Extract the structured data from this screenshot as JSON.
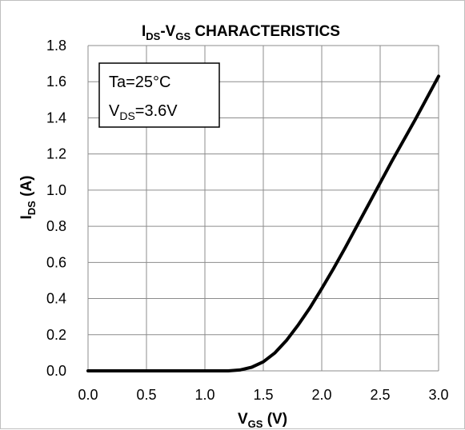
{
  "chart_data": {
    "type": "line",
    "title": {
      "main": "I",
      "sub1": "DS",
      "mid": "-V",
      "sub2": "GS",
      "rest": " CHARACTERISTICS"
    },
    "xlabel": {
      "main": "V",
      "sub": "GS",
      "rest": " (V)"
    },
    "ylabel": {
      "main": "I",
      "sub": "DS",
      "rest": " (A)"
    },
    "xlim": [
      0,
      3.0
    ],
    "ylim": [
      0,
      1.8
    ],
    "x_ticks": [
      "0.0",
      "0.5",
      "1.0",
      "1.5",
      "2.0",
      "2.5",
      "3.0"
    ],
    "y_ticks": [
      "0.0",
      "0.2",
      "0.4",
      "0.6",
      "0.8",
      "1.0",
      "1.2",
      "1.4",
      "1.6",
      "1.8"
    ],
    "grid": true,
    "legend": "none",
    "line_color": "#000000",
    "annotation": {
      "line1": "Ta=25°C",
      "line2_main": "V",
      "line2_sub": "DS",
      "line2_rest": "=3.6V"
    },
    "series": [
      {
        "x": [
          0.0,
          0.5,
          1.0,
          1.2,
          1.3,
          1.4,
          1.5,
          1.6,
          1.7,
          1.8,
          1.9,
          2.0,
          2.1,
          2.2,
          2.3,
          2.4,
          2.5,
          2.6,
          2.7,
          2.8,
          2.9,
          3.0
        ],
        "y": [
          0.0,
          0.0,
          0.0,
          0.0,
          0.005,
          0.02,
          0.05,
          0.1,
          0.17,
          0.255,
          0.35,
          0.455,
          0.565,
          0.68,
          0.8,
          0.92,
          1.04,
          1.16,
          1.275,
          1.39,
          1.51,
          1.63
        ]
      }
    ]
  }
}
